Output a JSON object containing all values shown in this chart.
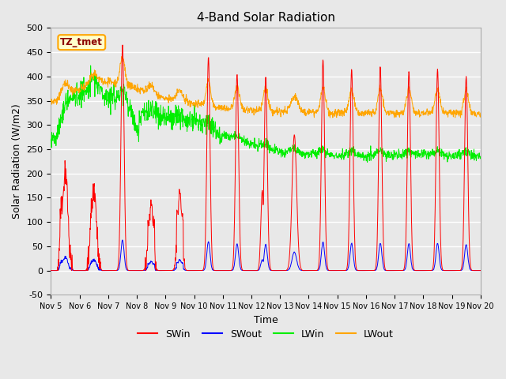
{
  "title": "4-Band Solar Radiation",
  "xlabel": "Time",
  "ylabel": "Solar Radiation (W/m2)",
  "ylim": [
    -50,
    500
  ],
  "xlim": [
    0,
    15
  ],
  "bg_color": "#e8e8e8",
  "label_box": "TZ_tmet",
  "colors": [
    "red",
    "blue",
    "#00dd00",
    "orange"
  ],
  "xtick_labels": [
    "Nov 5",
    "Nov 6",
    "Nov 7",
    "Nov 8",
    "Nov 9",
    "Nov 10",
    "Nov 11",
    "Nov 12",
    "Nov 13",
    "Nov 14",
    "Nov 15",
    "Nov 16",
    "Nov 17",
    "Nov 18",
    "Nov 19",
    "Nov 20"
  ],
  "xtick_positions": [
    0,
    1,
    2,
    3,
    4,
    5,
    6,
    7,
    8,
    9,
    10,
    11,
    12,
    13,
    14,
    15
  ],
  "ytick_labels": [
    "-50",
    "0",
    "50",
    "100",
    "150",
    "200",
    "250",
    "300",
    "350",
    "400",
    "450",
    "500"
  ],
  "ytick_positions": [
    -50,
    0,
    50,
    100,
    150,
    200,
    250,
    300,
    350,
    400,
    450,
    500
  ]
}
